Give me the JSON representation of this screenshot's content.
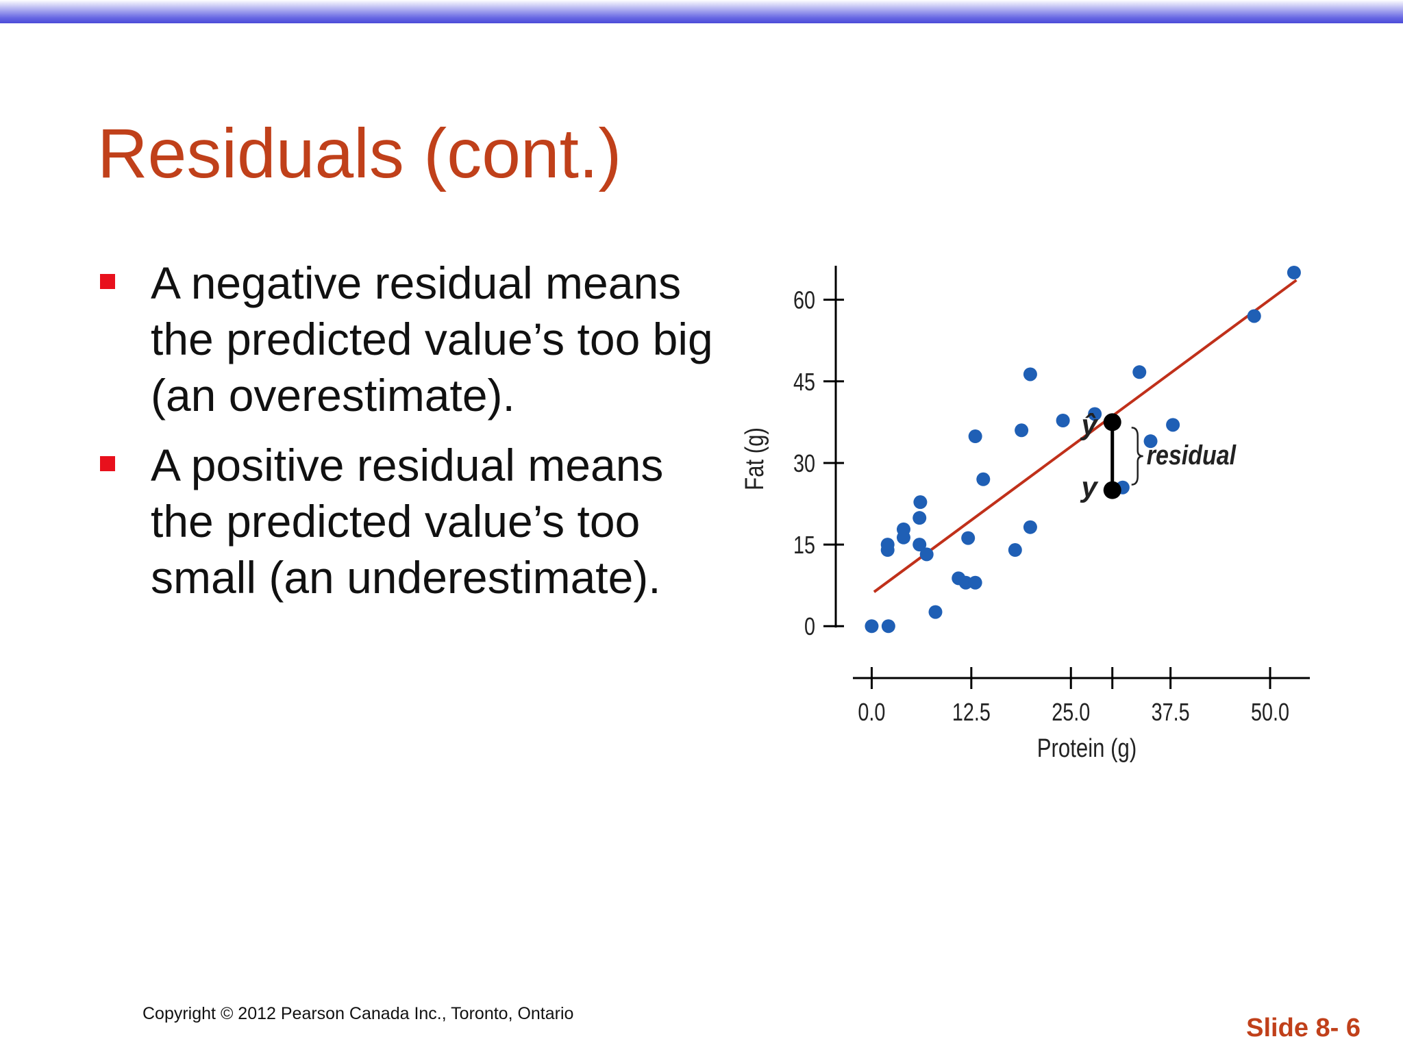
{
  "slide": {
    "title": "Residuals (cont.)",
    "bullets": [
      "A negative residual means the predicted value’s too big (an overestimate).",
      "A positive residual means the predicted value’s too small (an underestimate)."
    ],
    "footer": "Copyright © 2012 Pearson Canada Inc., Toronto, Ontario",
    "slide_number": "Slide 8- 6"
  },
  "colors": {
    "title": "#c0401a",
    "bullet_marker": "#e8101c",
    "points": "#1f5fb5",
    "regression_line": "#c0301a",
    "highlight": "#000000"
  },
  "chart_data": {
    "type": "scatter",
    "xlabel": "Protein (g)",
    "ylabel": "Fat (g)",
    "xticks": [
      "0.0",
      "12.5",
      "25.0",
      "37.5",
      "50.0"
    ],
    "yticks": [
      "0",
      "15",
      "30",
      "45",
      "60"
    ],
    "xlim": [
      -1.5,
      55.5
    ],
    "ylim": [
      -4.5,
      66
    ],
    "points": [
      {
        "x": 0.0,
        "y": 0.0
      },
      {
        "x": 2.1,
        "y": 0.0
      },
      {
        "x": 2.0,
        "y": 14.0
      },
      {
        "x": 2.0,
        "y": 15.0
      },
      {
        "x": 4.0,
        "y": 16.3
      },
      {
        "x": 4.0,
        "y": 17.8
      },
      {
        "x": 6.1,
        "y": 22.8
      },
      {
        "x": 6.0,
        "y": 19.9
      },
      {
        "x": 6.0,
        "y": 15.0
      },
      {
        "x": 6.9,
        "y": 13.2
      },
      {
        "x": 8.0,
        "y": 2.6
      },
      {
        "x": 10.9,
        "y": 8.8
      },
      {
        "x": 11.8,
        "y": 8.0
      },
      {
        "x": 12.1,
        "y": 16.2
      },
      {
        "x": 13.0,
        "y": 8.0
      },
      {
        "x": 13.0,
        "y": 34.9
      },
      {
        "x": 14.0,
        "y": 27.0
      },
      {
        "x": 18.0,
        "y": 14.0
      },
      {
        "x": 18.8,
        "y": 36.0
      },
      {
        "x": 19.9,
        "y": 46.3
      },
      {
        "x": 19.9,
        "y": 18.2
      },
      {
        "x": 24.0,
        "y": 37.8
      },
      {
        "x": 28.0,
        "y": 39.0
      },
      {
        "x": 31.5,
        "y": 25.5
      },
      {
        "x": 33.6,
        "y": 46.7
      },
      {
        "x": 35.0,
        "y": 34.0
      },
      {
        "x": 37.8,
        "y": 37.0
      },
      {
        "x": 48.0,
        "y": 57.0
      },
      {
        "x": 53.0,
        "y": 65.0
      }
    ],
    "regression_line": {
      "x": [
        0.3,
        53.3
      ],
      "y": [
        6.3,
        63.6
      ]
    },
    "highlight": {
      "x": 30.2,
      "y": 25.0,
      "y_hat": 37.5
    },
    "annotations": {
      "y_hat": "ŷ",
      "y": "y",
      "residual": "residual"
    }
  }
}
